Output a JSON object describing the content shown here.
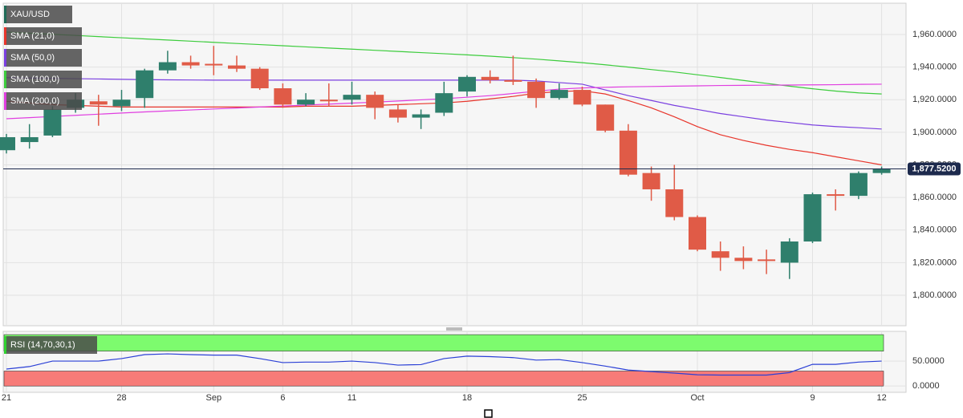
{
  "chart_data": [
    {
      "type": "candlestick",
      "name": "XAU/USD",
      "categories": [
        "21",
        null,
        null,
        null,
        null,
        "28",
        null,
        null,
        null,
        "Sep",
        null,
        null,
        "6",
        null,
        null,
        "11",
        null,
        null,
        null,
        null,
        "18",
        null,
        null,
        null,
        null,
        "25",
        null,
        null,
        null,
        null,
        "Oct",
        null,
        null,
        null,
        null,
        "9",
        null,
        null,
        "12"
      ],
      "open": [
        1889,
        1894,
        1898,
        1915,
        1919,
        1916,
        1921,
        1938,
        1943,
        1942,
        1941,
        1939,
        1927,
        1917,
        1920,
        1920,
        1923,
        1914,
        1909,
        1912,
        1925,
        1934,
        1932,
        1931,
        1921,
        1926,
        1917,
        1901,
        1875,
        1865,
        1848,
        1827,
        1823,
        1822,
        1820,
        1833,
        1862,
        1861,
        1875
      ],
      "high": [
        1899,
        1905,
        1916,
        1924,
        1923,
        1926,
        1939,
        1950,
        1947,
        1953,
        1947,
        1940,
        1930,
        1924,
        1930,
        1931,
        1925,
        1917,
        1914,
        1931,
        1935,
        1938,
        1947,
        1933,
        1930,
        1928,
        1917,
        1905,
        1879,
        1880,
        1849,
        1833,
        1830,
        1828,
        1835,
        1863,
        1865,
        1876,
        1879
      ],
      "low": [
        1887,
        1890,
        1897,
        1912,
        1904,
        1913,
        1915,
        1936,
        1939,
        1935,
        1937,
        1926,
        1915,
        1916,
        1916,
        1917,
        1908,
        1906,
        1902,
        1910,
        1922,
        1930,
        1929,
        1915,
        1920,
        1916,
        1900,
        1873,
        1858,
        1846,
        1827,
        1815,
        1816,
        1813,
        1810,
        1832,
        1852,
        1859,
        1874
      ],
      "close": [
        1897,
        1897,
        1914,
        1920,
        1917,
        1920,
        1938,
        1943,
        1941,
        1941,
        1939,
        1927,
        1917,
        1920,
        1919,
        1923,
        1915,
        1909,
        1911,
        1924,
        1934,
        1932,
        1931,
        1921,
        1926,
        1917,
        1901,
        1874,
        1865,
        1848,
        1828,
        1823,
        1821,
        1821,
        1833,
        1862,
        1861,
        1875,
        1877.52
      ],
      "up_color": "#2f7f6c",
      "down_color": "#e05b47",
      "series": [
        {
          "name": "SMA (21,0)",
          "color": "#e8352b",
          "values": [
            1919,
            1918,
            1917,
            1916.5,
            1916,
            1915.5,
            1915.5,
            1915.5,
            1915.5,
            1915.5,
            1915.5,
            1915.5,
            1915.5,
            1916,
            1916,
            1916,
            1916.5,
            1917,
            1917.5,
            1918,
            1919,
            1920.5,
            1922,
            1924,
            1925,
            1925.5,
            1923.5,
            1919.5,
            1915,
            1909.5,
            1903.5,
            1898.5,
            1895,
            1892,
            1889.5,
            1887.5,
            1885,
            1882.5,
            1880
          ]
        },
        {
          "name": "SMA (50,0)",
          "color": "#7a3fe0",
          "values": [
            1933.5,
            1933.3,
            1933.1,
            1932.9,
            1932.7,
            1932.5,
            1932.3,
            1932.2,
            1932.1,
            1932,
            1932,
            1932,
            1932,
            1932,
            1932,
            1932,
            1932,
            1932,
            1932,
            1932,
            1932,
            1932,
            1932,
            1931.5,
            1930.5,
            1929.5,
            1926,
            1922.5,
            1919.5,
            1916.5,
            1914,
            1911.5,
            1909.5,
            1907.5,
            1906,
            1904.5,
            1903.5,
            1902.8,
            1902
          ]
        },
        {
          "name": "SMA (100,0)",
          "color": "#3ccc3c",
          "values": [
            1961.5,
            1960.8,
            1960.1,
            1959.4,
            1958.7,
            1958,
            1957.3,
            1956.6,
            1955.9,
            1955.2,
            1954.5,
            1953.8,
            1953.1,
            1952.4,
            1951.7,
            1951,
            1950.3,
            1949.6,
            1948.9,
            1948.2,
            1947.5,
            1946.7,
            1945.8,
            1944.9,
            1943.8,
            1942.7,
            1941.4,
            1940,
            1938.5,
            1937,
            1935.3,
            1933.6,
            1931.8,
            1930,
            1928.3,
            1926.7,
            1925.3,
            1924.2,
            1923.5
          ]
        },
        {
          "name": "SMA (200,0)",
          "color": "#e03ee0",
          "values": [
            1908.3,
            1909,
            1909.7,
            1910.4,
            1911.1,
            1911.8,
            1912.5,
            1913.1,
            1913.7,
            1914.3,
            1914.9,
            1915.5,
            1916.1,
            1916.7,
            1917.3,
            1917.9,
            1918.5,
            1919.2,
            1919.9,
            1920.6,
            1921.5,
            1922.5,
            1923.8,
            1925.2,
            1926.5,
            1927.2,
            1927.6,
            1927.9,
            1928.1,
            1928.3,
            1928.5,
            1928.7,
            1928.8,
            1928.9,
            1929,
            1929.1,
            1929.2,
            1929.4,
            1929.5
          ]
        }
      ],
      "last_price": {
        "value": 1877.52,
        "label": "1,877.5200"
      },
      "ylim": [
        1781.8,
        1978.7
      ],
      "yticks": [
        {
          "value": 1800,
          "label": "1,800.0000"
        },
        {
          "value": 1820,
          "label": "1,820.0000"
        },
        {
          "value": 1840,
          "label": "1,840.0000"
        },
        {
          "value": 1860,
          "label": "1,860.0000"
        },
        {
          "value": 1880,
          "label": "1,880.0000"
        },
        {
          "value": 1900,
          "label": "1,900.0000"
        },
        {
          "value": 1920,
          "label": "1,920.0000"
        },
        {
          "value": 1940,
          "label": "1,940.0000"
        },
        {
          "value": 1960,
          "label": "1,960.0000"
        }
      ],
      "grid": true
    },
    {
      "type": "line",
      "series": [
        {
          "name": "RSI (14,70,30,1)",
          "color": "#2b40d6",
          "values": [
            34,
            39,
            50,
            50,
            50,
            55,
            63,
            64.5,
            63,
            62,
            62,
            55,
            47,
            48,
            48,
            50,
            47,
            42,
            43,
            55,
            60,
            59,
            57,
            52,
            53,
            47,
            40,
            32,
            29,
            26,
            22.6,
            22,
            22,
            22,
            27,
            43.5,
            43.5,
            48,
            50
          ]
        }
      ],
      "bands": [
        {
          "from": 70,
          "to": 103,
          "color": "#7dfb6e"
        },
        {
          "from": 0,
          "to": 30,
          "color": "#f77b78"
        }
      ],
      "ylim": [
        -11,
        108
      ],
      "yticks": [
        {
          "value": 0,
          "label": "0.0000"
        },
        {
          "value": 50,
          "label": "50.0000"
        }
      ]
    }
  ]
}
